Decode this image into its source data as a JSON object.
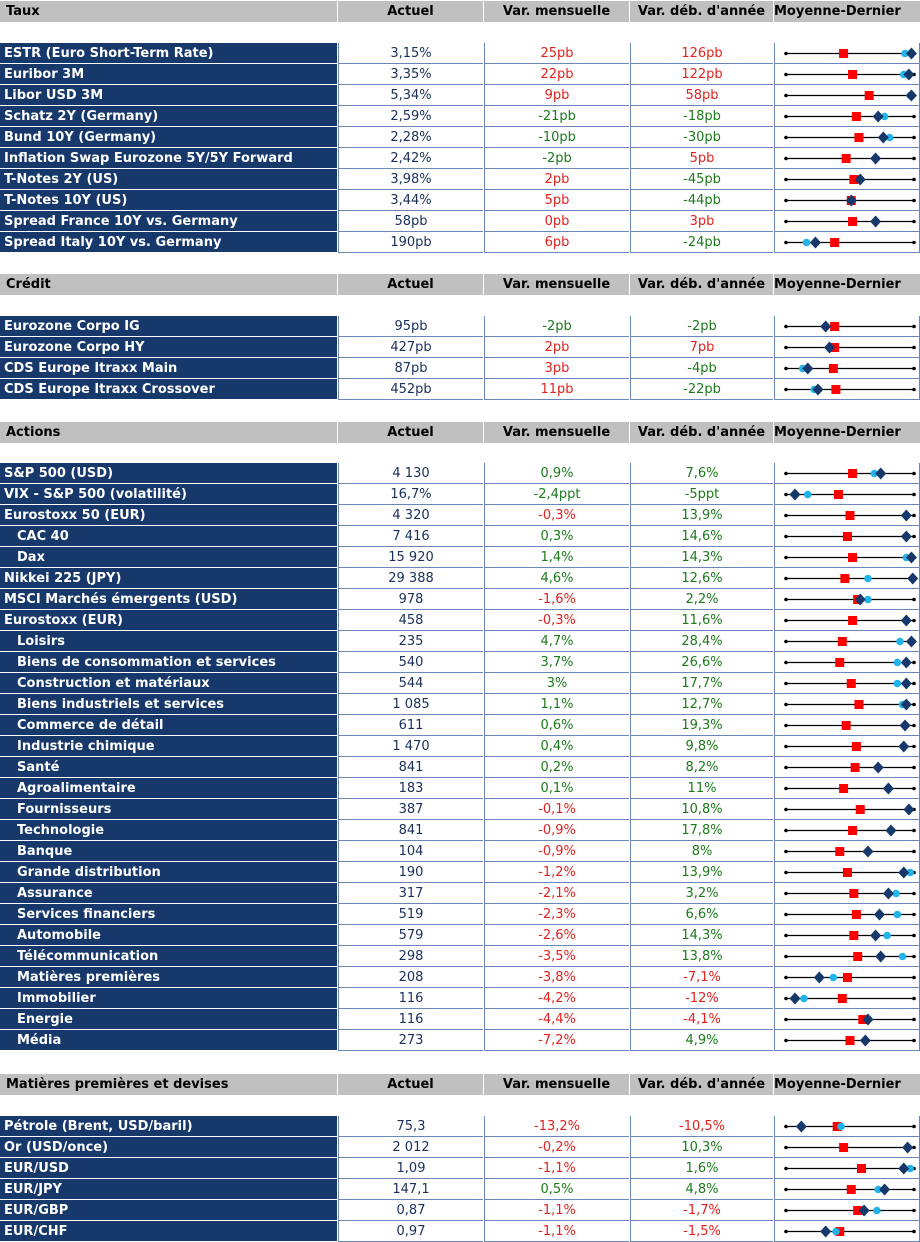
{
  "colors": {
    "header_bg": "#c0c0c0",
    "label_bg": "#17386b",
    "positive": "#1c7a1c",
    "negative": "#e0231f",
    "marker_red": "#ff0000",
    "marker_navy": "#17386b",
    "marker_cyan": "#21b4e8"
  },
  "icons": {
    "square": "red-square-marker",
    "diamond": "navy-diamond-marker",
    "circle": "cyan-circle-marker"
  },
  "sections": [
    {
      "title": "Taux",
      "col_actuel": "Actuel",
      "col_mensuelle": "Var. mensuelle",
      "col_annee": "Var. déb. d'année",
      "col_moyenne": "Moyenne-Dernier",
      "rows": [
        {
          "label": "ESTR (Euro Short-Term Rate)",
          "actuel": "3,15%",
          "mensuelle": "25pb",
          "m_sign": "red",
          "annee": "126pb",
          "a_sign": "red",
          "sq": 0.45,
          "dm": 0.98,
          "ci": 0.93
        },
        {
          "label": "Euribor 3M",
          "actuel": "3,35%",
          "mensuelle": "22pb",
          "m_sign": "red",
          "annee": "122pb",
          "a_sign": "red",
          "sq": 0.52,
          "dm": 0.96,
          "ci": 0.92
        },
        {
          "label": "Libor USD 3M",
          "actuel": "5,34%",
          "mensuelle": "9pb",
          "m_sign": "red",
          "annee": "58pb",
          "a_sign": "red",
          "sq": 0.65,
          "dm": 0.98,
          "ci": 0.97
        },
        {
          "label": "Schatz 2Y (Germany)",
          "actuel": "2,59%",
          "mensuelle": "-21pb",
          "m_sign": "green",
          "annee": "-18pb",
          "a_sign": "green",
          "sq": 0.55,
          "dm": 0.72,
          "ci": 0.77
        },
        {
          "label": "Bund 10Y (Germany)",
          "actuel": "2,28%",
          "mensuelle": "-10pb",
          "m_sign": "green",
          "annee": "-30pb",
          "a_sign": "green",
          "sq": 0.57,
          "dm": 0.76,
          "ci": 0.81
        },
        {
          "label": "Inflation Swap Eurozone 5Y/5Y Forward",
          "actuel": "2,42%",
          "mensuelle": "-2pb",
          "m_sign": "green",
          "annee": "5pb",
          "a_sign": "red",
          "sq": 0.47,
          "dm": 0.7,
          "ci": null
        },
        {
          "label": "T-Notes 2Y (US)",
          "actuel": "3,98%",
          "mensuelle": "2pb",
          "m_sign": "red",
          "annee": "-45pb",
          "a_sign": "green",
          "sq": 0.53,
          "dm": 0.58,
          "ci": null
        },
        {
          "label": "T-Notes 10Y (US)",
          "actuel": "3,44%",
          "mensuelle": "5pb",
          "m_sign": "red",
          "annee": "-44pb",
          "a_sign": "green",
          "sq": 0.51,
          "dm": 0.51,
          "ci": null
        },
        {
          "label": "Spread France 10Y vs. Germany",
          "actuel": "58pb",
          "mensuelle": "0pb",
          "m_sign": "red",
          "annee": "3pb",
          "a_sign": "red",
          "sq": 0.52,
          "dm": 0.7,
          "ci": null
        },
        {
          "label": "Spread Italy 10Y vs. Germany",
          "actuel": "190pb",
          "mensuelle": "6pb",
          "m_sign": "red",
          "annee": "-24pb",
          "a_sign": "green",
          "sq": 0.38,
          "dm": 0.23,
          "ci": 0.16
        }
      ]
    },
    {
      "title": "Crédit",
      "col_actuel": "Actuel",
      "col_mensuelle": "Var. mensuelle",
      "col_annee": "Var. déb. d'année",
      "col_moyenne": "Moyenne-Dernier",
      "rows": [
        {
          "label": "Eurozone Corpo IG",
          "actuel": "95pb",
          "mensuelle": "-2pb",
          "m_sign": "green",
          "annee": "-2pb",
          "a_sign": "green",
          "sq": 0.38,
          "dm": 0.31,
          "ci": null
        },
        {
          "label": "Eurozone Corpo HY",
          "actuel": "427pb",
          "mensuelle": "2pb",
          "m_sign": "red",
          "annee": "7pb",
          "a_sign": "red",
          "sq": 0.38,
          "dm": 0.34,
          "ci": null
        },
        {
          "label": "CDS Europe Itraxx Main",
          "actuel": "87pb",
          "mensuelle": "3pb",
          "m_sign": "red",
          "annee": "-4pb",
          "a_sign": "green",
          "sq": 0.37,
          "dm": 0.17,
          "ci": 0.13
        },
        {
          "label": "CDS Europe Itraxx Crossover",
          "actuel": "452pb",
          "mensuelle": "11pb",
          "m_sign": "red",
          "annee": "-22pb",
          "a_sign": "green",
          "sq": 0.39,
          "dm": 0.25,
          "ci": 0.22
        }
      ]
    },
    {
      "title": "Actions",
      "col_actuel": "Actuel",
      "col_mensuelle": "Var. mensuelle",
      "col_annee": "Var. déb. d'année",
      "col_moyenne": "Moyenne-Dernier",
      "rows": [
        {
          "label": "S&P 500 (USD)",
          "sub": false,
          "actuel": "4 130",
          "mensuelle": "0,9%",
          "m_sign": "green",
          "annee": "7,6%",
          "a_sign": "green",
          "sq": 0.52,
          "dm": 0.74,
          "ci": 0.69
        },
        {
          "label": "VIX - S&P 500 (volatilité)",
          "sub": false,
          "actuel": "16,7%",
          "mensuelle": "-2,4ppt",
          "m_sign": "green",
          "annee": "-5ppt",
          "a_sign": "green",
          "sq": 0.41,
          "dm": 0.07,
          "ci": 0.17
        },
        {
          "label": "Eurostoxx 50 (EUR)",
          "sub": false,
          "actuel": "4 320",
          "mensuelle": "-0,3%",
          "m_sign": "red",
          "annee": "13,9%",
          "a_sign": "green",
          "sq": 0.5,
          "dm": 0.94,
          "ci": null
        },
        {
          "label": "CAC 40",
          "sub": true,
          "actuel": "7 416",
          "mensuelle": "0,3%",
          "m_sign": "green",
          "annee": "14,6%",
          "a_sign": "green",
          "sq": 0.48,
          "dm": 0.94,
          "ci": null
        },
        {
          "label": "Dax",
          "sub": true,
          "actuel": "15 920",
          "mensuelle": "1,4%",
          "m_sign": "green",
          "annee": "14,3%",
          "a_sign": "green",
          "sq": 0.52,
          "dm": 0.98,
          "ci": 0.94
        },
        {
          "label": "Nikkei 225 (JPY)",
          "sub": false,
          "actuel": "29 388",
          "mensuelle": "4,6%",
          "m_sign": "green",
          "annee": "12,6%",
          "a_sign": "green",
          "sq": 0.46,
          "dm": 0.99,
          "ci": 0.64
        },
        {
          "label": "MSCI Marchés émergents (USD)",
          "sub": false,
          "actuel": "978",
          "mensuelle": "-1,6%",
          "m_sign": "red",
          "annee": "2,2%",
          "a_sign": "green",
          "sq": 0.56,
          "dm": 0.58,
          "ci": 0.64
        },
        {
          "label": "Eurostoxx (EUR)",
          "sub": false,
          "actuel": "458",
          "mensuelle": "-0,3%",
          "m_sign": "red",
          "annee": "11,6%",
          "a_sign": "green",
          "sq": 0.52,
          "dm": 0.94,
          "ci": null
        },
        {
          "label": "Loisirs",
          "sub": true,
          "actuel": "235",
          "mensuelle": "4,7%",
          "m_sign": "green",
          "annee": "28,4%",
          "a_sign": "green",
          "sq": 0.44,
          "dm": 0.98,
          "ci": 0.89
        },
        {
          "label": "Biens de consommation et services",
          "sub": true,
          "actuel": "540",
          "mensuelle": "3,7%",
          "m_sign": "green",
          "annee": "26,6%",
          "a_sign": "green",
          "sq": 0.42,
          "dm": 0.94,
          "ci": 0.87
        },
        {
          "label": "Construction et matériaux",
          "sub": true,
          "actuel": "544",
          "mensuelle": "3%",
          "m_sign": "green",
          "annee": "17,7%",
          "a_sign": "green",
          "sq": 0.51,
          "dm": 0.94,
          "ci": 0.87
        },
        {
          "label": "Biens industriels et services",
          "sub": true,
          "actuel": "1 085",
          "mensuelle": "1,1%",
          "m_sign": "green",
          "annee": "12,7%",
          "a_sign": "green",
          "sq": 0.57,
          "dm": 0.94,
          "ci": 0.91
        },
        {
          "label": "Commerce de détail",
          "sub": true,
          "actuel": "611",
          "mensuelle": "0,6%",
          "m_sign": "green",
          "annee": "19,3%",
          "a_sign": "green",
          "sq": 0.47,
          "dm": 0.93,
          "ci": null
        },
        {
          "label": "Industrie chimique",
          "sub": true,
          "actuel": "1 470",
          "mensuelle": "0,4%",
          "m_sign": "green",
          "annee": "9,8%",
          "a_sign": "green",
          "sq": 0.55,
          "dm": 0.92,
          "ci": null
        },
        {
          "label": "Santé",
          "sub": true,
          "actuel": "841",
          "mensuelle": "0,2%",
          "m_sign": "green",
          "annee": "8,2%",
          "a_sign": "green",
          "sq": 0.54,
          "dm": 0.72,
          "ci": null
        },
        {
          "label": "Agroalimentaire",
          "sub": true,
          "actuel": "183",
          "mensuelle": "0,1%",
          "m_sign": "green",
          "annee": "11%",
          "a_sign": "green",
          "sq": 0.45,
          "dm": 0.8,
          "ci": null
        },
        {
          "label": "Fournisseurs",
          "sub": true,
          "actuel": "387",
          "mensuelle": "-0,1%",
          "m_sign": "red",
          "annee": "10,8%",
          "a_sign": "green",
          "sq": 0.58,
          "dm": 0.96,
          "ci": null
        },
        {
          "label": "Technologie",
          "sub": true,
          "actuel": "841",
          "mensuelle": "-0,9%",
          "m_sign": "red",
          "annee": "17,8%",
          "a_sign": "green",
          "sq": 0.52,
          "dm": 0.82,
          "ci": null
        },
        {
          "label": "Banque",
          "sub": true,
          "actuel": "104",
          "mensuelle": "-0,9%",
          "m_sign": "red",
          "annee": "8%",
          "a_sign": "green",
          "sq": 0.42,
          "dm": 0.64,
          "ci": null
        },
        {
          "label": "Grande distribution",
          "sub": true,
          "actuel": "190",
          "mensuelle": "-1,2%",
          "m_sign": "red",
          "annee": "13,9%",
          "a_sign": "green",
          "sq": 0.48,
          "dm": 0.92,
          "ci": 0.97
        },
        {
          "label": "Assurance",
          "sub": true,
          "actuel": "317",
          "mensuelle": "-2,1%",
          "m_sign": "red",
          "annee": "3,2%",
          "a_sign": "green",
          "sq": 0.53,
          "dm": 0.8,
          "ci": 0.86
        },
        {
          "label": "Services financiers",
          "sub": true,
          "actuel": "519",
          "mensuelle": "-2,3%",
          "m_sign": "red",
          "annee": "6,6%",
          "a_sign": "green",
          "sq": 0.55,
          "dm": 0.73,
          "ci": 0.87
        },
        {
          "label": "Automobile",
          "sub": true,
          "actuel": "579",
          "mensuelle": "-2,6%",
          "m_sign": "red",
          "annee": "14,3%",
          "a_sign": "green",
          "sq": 0.53,
          "dm": 0.7,
          "ci": 0.79
        },
        {
          "label": "Télécommunication",
          "sub": true,
          "actuel": "298",
          "mensuelle": "-3,5%",
          "m_sign": "red",
          "annee": "13,8%",
          "a_sign": "green",
          "sq": 0.56,
          "dm": 0.74,
          "ci": 0.91
        },
        {
          "label": "Matières premières",
          "sub": true,
          "actuel": "208",
          "mensuelle": "-3,8%",
          "m_sign": "red",
          "annee": "-7,1%",
          "a_sign": "red",
          "sq": 0.48,
          "dm": 0.26,
          "ci": 0.37
        },
        {
          "label": "Immobilier",
          "sub": true,
          "actuel": "116",
          "mensuelle": "-4,2%",
          "m_sign": "red",
          "annee": "-12%",
          "a_sign": "red",
          "sq": 0.44,
          "dm": 0.07,
          "ci": 0.14
        },
        {
          "label": "Energie",
          "sub": true,
          "actuel": "116",
          "mensuelle": "-4,4%",
          "m_sign": "red",
          "annee": "-4,1%",
          "a_sign": "red",
          "sq": 0.6,
          "dm": 0.64,
          "ci": null
        },
        {
          "label": "Média",
          "sub": true,
          "actuel": "273",
          "mensuelle": "-7,2%",
          "m_sign": "red",
          "annee": "4,9%",
          "a_sign": "green",
          "sq": 0.5,
          "dm": 0.62,
          "ci": null
        }
      ]
    },
    {
      "title": "Matières premières et devises",
      "col_actuel": "Actuel",
      "col_mensuelle": "Var. mensuelle",
      "col_annee": "Var. déb. d'année",
      "col_moyenne": "Moyenne-Dernier",
      "rows": [
        {
          "label": "Pétrole (Brent, USD/baril)",
          "actuel": "75,3",
          "mensuelle": "-13,2%",
          "m_sign": "red",
          "annee": "-10,5%",
          "a_sign": "red",
          "sq": 0.4,
          "dm": 0.12,
          "ci": 0.43
        },
        {
          "label": "Or (USD/once)",
          "actuel": "2 012",
          "mensuelle": "-0,2%",
          "m_sign": "red",
          "annee": "10,3%",
          "a_sign": "green",
          "sq": 0.45,
          "dm": 0.95,
          "ci": null
        },
        {
          "label": "EUR/USD",
          "actuel": "1,09",
          "mensuelle": "-1,1%",
          "m_sign": "red",
          "annee": "1,6%",
          "a_sign": "green",
          "sq": 0.59,
          "dm": 0.92,
          "ci": 0.97
        },
        {
          "label": "EUR/JPY",
          "actuel": "147,1",
          "mensuelle": "0,5%",
          "m_sign": "green",
          "annee": "4,8%",
          "a_sign": "green",
          "sq": 0.51,
          "dm": 0.77,
          "ci": 0.72
        },
        {
          "label": "EUR/GBP",
          "actuel": "0,87",
          "mensuelle": "-1,1%",
          "m_sign": "red",
          "annee": "-1,7%",
          "a_sign": "red",
          "sq": 0.56,
          "dm": 0.61,
          "ci": 0.71
        },
        {
          "label": "EUR/CHF",
          "actuel": "0,97",
          "mensuelle": "-1,1%",
          "m_sign": "red",
          "annee": "-1,5%",
          "a_sign": "red",
          "sq": 0.42,
          "dm": 0.31,
          "ci": 0.39
        }
      ]
    }
  ]
}
